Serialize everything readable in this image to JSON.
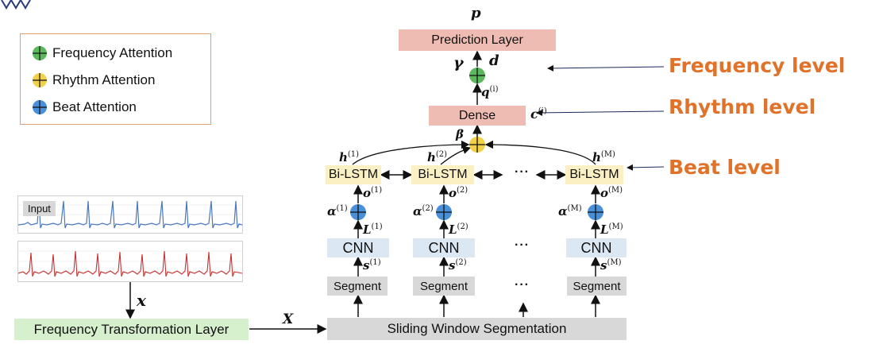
{
  "legend": {
    "items": [
      {
        "label": "Frequency Attention",
        "color": "#5cb85c"
      },
      {
        "label": "Rhythm Attention",
        "color": "#f2d14a"
      },
      {
        "label": "Beat Attention",
        "color": "#4a90d9"
      }
    ]
  },
  "levels": {
    "frequency": "Frequency level",
    "rhythm": "Rhythm level",
    "beat": "Beat level"
  },
  "blocks": {
    "prediction": "Prediction Layer",
    "dense": "Dense",
    "bilstm": "Bi-LSTM",
    "cnn": "CNN",
    "segment": "Segment",
    "sliding": "Sliding Window Segmentation",
    "freq_transform": "Frequency Transformation Layer",
    "input_tag": "Input",
    "ellipsis": "···"
  },
  "symbols": {
    "p": "p",
    "gamma": "γ",
    "d": "d",
    "q_base": "q",
    "q_sup": "(i)",
    "c_base": "c",
    "c_sup": "(i)",
    "beta": "β",
    "h_base": "h",
    "o_base": "o",
    "alpha_base": "α",
    "L_base": "L",
    "s_base": "s",
    "sup1": "(1)",
    "sup2": "(2)",
    "supM": "(M)",
    "x": "x",
    "X": "X"
  },
  "colors": {
    "accent_orange": "#e0722a",
    "green_attention": "#5cb85c",
    "yellow_attention": "#f2d14a",
    "blue_attention": "#4a90d9",
    "ecg_blue": "#4a78c0",
    "ecg_red": "#c83030"
  }
}
